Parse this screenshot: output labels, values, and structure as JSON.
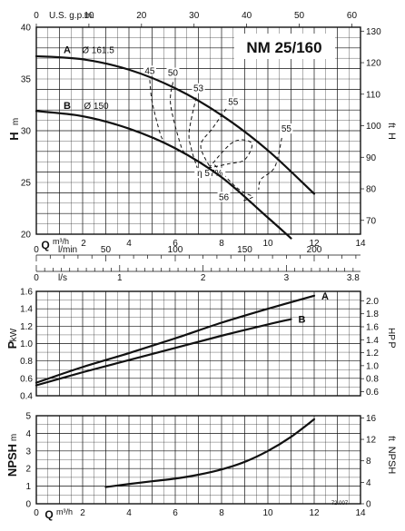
{
  "chart_data": [
    {
      "id": "head",
      "type": "line",
      "title": "NM 25/160",
      "top_axis": {
        "label": "U.S. g.p.m.",
        "ticks": [
          0,
          10,
          20,
          30,
          40,
          50,
          60
        ]
      },
      "x_axis": {
        "label": "Q",
        "unit": "m³/h",
        "range": [
          0,
          14
        ],
        "ticks": [
          0,
          2,
          4,
          6,
          8,
          10,
          12,
          14
        ]
      },
      "y_axis": {
        "label": "H",
        "unit": "m",
        "range": [
          20,
          40
        ],
        "ticks": [
          20,
          25,
          30,
          35,
          40
        ]
      },
      "y2_axis": {
        "label": "H",
        "unit": "ft",
        "ticks": [
          70,
          80,
          90,
          100,
          110,
          120,
          130
        ]
      },
      "grid": true,
      "series": [
        {
          "name": "A",
          "label": "Ø 161.5",
          "x": [
            0,
            2,
            4,
            6,
            8,
            10,
            12
          ],
          "y": [
            37.2,
            36.9,
            35.9,
            34.1,
            31.5,
            28.1,
            23.9
          ]
        },
        {
          "name": "B",
          "label": "Ø 150",
          "x": [
            0,
            2,
            4,
            6,
            8,
            10,
            11
          ],
          "y": [
            31.9,
            31.4,
            30.2,
            28.3,
            25.5,
            21.6,
            19.6
          ]
        }
      ],
      "efficiency_labels": [
        "45",
        "50",
        "53",
        "55",
        "55",
        "η 57%",
        "56"
      ],
      "efficiency_contours": [
        {
          "value": "45",
          "x": [
            4.9,
            5.0,
            5.35,
            5.5
          ],
          "y": [
            34.9,
            32.8,
            29.7,
            29.1
          ]
        },
        {
          "value": "50",
          "x": [
            5.9,
            5.8,
            6.25,
            6.5
          ],
          "y": [
            34.7,
            32.5,
            28.5,
            27.7
          ]
        },
        {
          "value": "53",
          "x": [
            6.9,
            6.6,
            6.7,
            6.95
          ],
          "y": [
            33.2,
            29.9,
            28.2,
            26.4
          ]
        },
        {
          "value": "55",
          "x": [
            8.2,
            7.6,
            7.1,
            7.6
          ],
          "y": [
            32.1,
            30.2,
            28.5,
            26.1
          ]
        },
        {
          "value": "55",
          "x": [
            10.6,
            10.3,
            9.7,
            9.6
          ],
          "y": [
            29.3,
            26.5,
            25.3,
            24.3
          ]
        },
        {
          "value": "57",
          "x": [
            7.45,
            8.5,
            9.3,
            9.0,
            8.3,
            7.45
          ],
          "y": [
            26.4,
            28.9,
            28.8,
            27.2,
            26.8,
            26.4
          ]
        },
        {
          "value": "56",
          "x": [
            7.7,
            8.6,
            9.1,
            9.35,
            8.9
          ],
          "y": [
            26.7,
            24.6,
            23.9,
            23.6,
            23.2
          ]
        }
      ]
    },
    {
      "id": "flow",
      "type": "table",
      "axes": [
        {
          "unit": "l/min",
          "ticks": [
            0,
            50,
            100,
            150,
            200
          ]
        },
        {
          "unit": "l/s",
          "ticks": [
            0,
            1,
            2,
            3,
            3.8
          ]
        }
      ]
    },
    {
      "id": "power",
      "type": "line",
      "x_axis": {
        "label": "Q",
        "unit": "m³/h",
        "range": [
          0,
          14
        ]
      },
      "y_axis": {
        "label": "P",
        "unit": "kW",
        "range": [
          0.4,
          1.6
        ],
        "ticks": [
          0.4,
          0.6,
          0.8,
          1.0,
          1.2,
          1.4,
          1.6
        ]
      },
      "y2_axis": {
        "label": "P",
        "unit": "HP",
        "ticks": [
          0.6,
          0.8,
          1.0,
          1.2,
          1.4,
          1.6,
          1.8,
          2.0
        ]
      },
      "grid": true,
      "series": [
        {
          "name": "A",
          "x": [
            0,
            2,
            4,
            6,
            8,
            10,
            12
          ],
          "y": [
            0.55,
            0.73,
            0.89,
            1.06,
            1.24,
            1.4,
            1.55
          ]
        },
        {
          "name": "B",
          "x": [
            0,
            2,
            4,
            6,
            8,
            10,
            11
          ],
          "y": [
            0.52,
            0.67,
            0.81,
            0.95,
            1.09,
            1.22,
            1.28
          ]
        }
      ]
    },
    {
      "id": "npsh",
      "type": "line",
      "x_axis": {
        "label": "Q",
        "unit": "m³/h",
        "range": [
          0,
          14
        ],
        "ticks": [
          0,
          2,
          4,
          6,
          8,
          10,
          12,
          14
        ]
      },
      "y_axis": {
        "label": "NPSH",
        "unit": "m",
        "range": [
          0,
          5
        ],
        "ticks": [
          0,
          1,
          2,
          3,
          4,
          5
        ]
      },
      "y2_axis": {
        "label": "NPSH",
        "unit": "ft",
        "ticks": [
          0,
          4,
          8,
          12,
          16
        ]
      },
      "grid": true,
      "series": [
        {
          "name": "NPSH",
          "x": [
            3,
            4,
            5,
            6,
            7,
            8,
            9,
            10,
            11,
            12
          ],
          "y": [
            0.95,
            1.12,
            1.28,
            1.43,
            1.65,
            1.95,
            2.38,
            3.0,
            3.8,
            4.8
          ]
        }
      ]
    }
  ],
  "footer": {
    "code": "72.007"
  }
}
